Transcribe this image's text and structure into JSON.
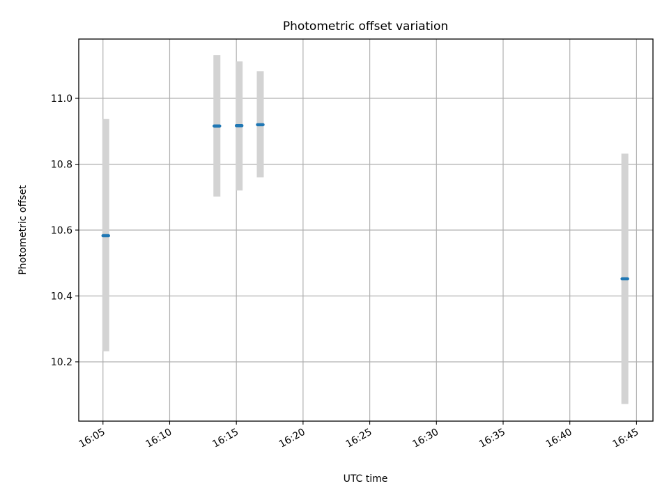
{
  "chart_data": {
    "type": "scatter",
    "title": "Photometric offset variation",
    "xlabel": "UTC time",
    "ylabel": "Photometric offset",
    "x_type": "time",
    "x_ticks": [
      "16:05",
      "16:10",
      "16:15",
      "16:20",
      "16:25",
      "16:30",
      "16:35",
      "16:40",
      "16:45"
    ],
    "xlim": [
      "16:03:11",
      "16:46:14"
    ],
    "y_ticks": [
      10.2,
      10.4,
      10.6,
      10.8,
      11.0
    ],
    "ylim": [
      10.02,
      11.18
    ],
    "grid": true,
    "error_bar_color": "#d3d3d3",
    "point_color": "#1f77b4",
    "series": [
      {
        "points": [
          {
            "x_start": "16:05:00",
            "x_end": "16:05:25",
            "y": 10.583,
            "yerr_low": 10.232,
            "yerr_high": 10.937
          },
          {
            "x_start": "16:13:20",
            "x_end": "16:13:45",
            "y": 10.916,
            "yerr_low": 10.702,
            "yerr_high": 11.131
          },
          {
            "x_start": "16:15:00",
            "x_end": "16:15:25",
            "y": 10.917,
            "yerr_low": 10.72,
            "yerr_high": 11.112
          },
          {
            "x_start": "16:16:35",
            "x_end": "16:17:00",
            "y": 10.92,
            "yerr_low": 10.76,
            "yerr_high": 11.082
          },
          {
            "x_start": "16:43:55",
            "x_end": "16:44:20",
            "y": 10.452,
            "yerr_low": 10.072,
            "yerr_high": 10.832
          }
        ]
      }
    ]
  }
}
